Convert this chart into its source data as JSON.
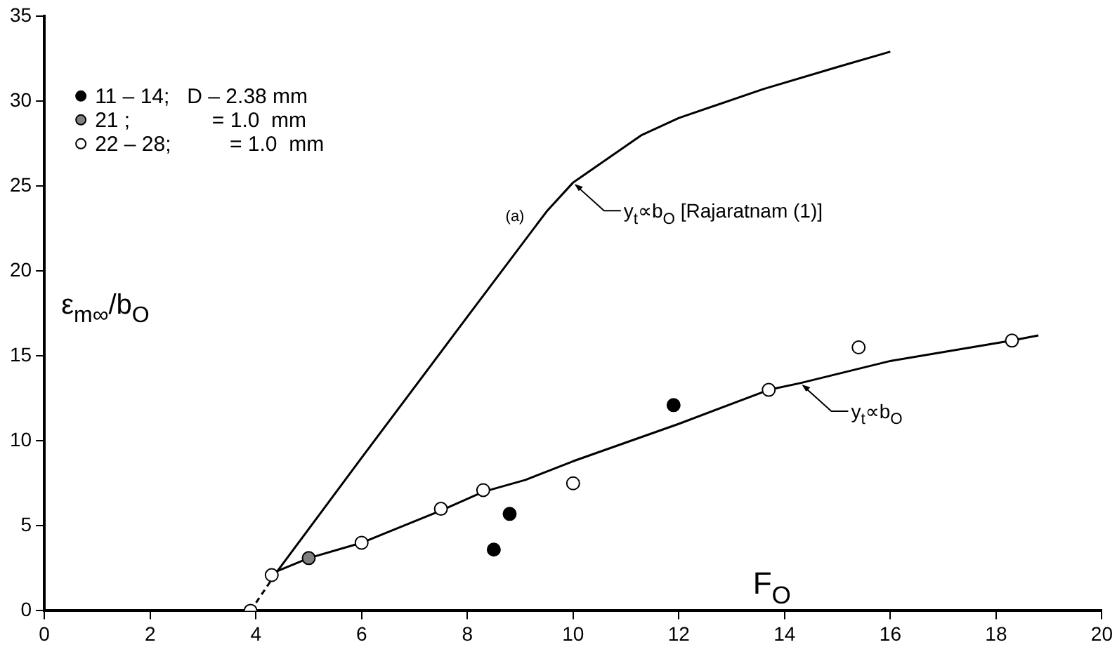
{
  "chart_data": {
    "type": "scatter",
    "xlabel": "F$_{O}$",
    "ylabel": "ε$_{m∞}$/b$_{O}$",
    "xlim": [
      0,
      20
    ],
    "xticks": [
      0,
      2,
      4,
      6,
      8,
      10,
      12,
      14,
      16,
      18,
      20
    ],
    "ylim": [
      0,
      35
    ],
    "yticks": [
      0,
      5,
      10,
      15,
      20,
      25,
      30,
      35
    ],
    "grid": false,
    "legend": "top left",
    "series": [
      {
        "name": "11 – 14;   D – 2.38 mm",
        "marker": "circle",
        "color": "#000000",
        "x": [
          8.5,
          8.8,
          11.9
        ],
        "values": [
          3.6,
          5.7,
          12.1
        ]
      },
      {
        "name": "21 ;              = 1.0  mm",
        "marker": "circle",
        "color": "#808080",
        "x": [
          5.0
        ],
        "values": [
          3.1
        ]
      },
      {
        "name": "22 – 28;          = 1.0  mm",
        "marker": "circle",
        "color": "#ffffff",
        "x": [
          3.9,
          4.3,
          6.0,
          7.5,
          8.3,
          10.0,
          13.7,
          15.4,
          18.3
        ],
        "values": [
          0.0,
          2.1,
          4.0,
          6.0,
          7.1,
          7.5,
          13.0,
          15.5,
          15.9
        ]
      },
      {
        "type": "line",
        "marker": "none",
        "line_style": "dashed",
        "color": "#000000",
        "x": [
          3.9,
          4.4
        ],
        "values": [
          0.0,
          2.3
        ]
      },
      {
        "type": "line",
        "marker": "none",
        "line_style": "solid",
        "color": "#000000",
        "x": [
          4.4,
          6.0,
          8.0,
          9.5,
          10.0,
          11.3,
          12.0,
          13.6,
          15.0,
          16.0
        ],
        "values": [
          2.3,
          9.0,
          17.3,
          23.5,
          25.2,
          28.0,
          29.0,
          30.7,
          32.0,
          32.9
        ]
      },
      {
        "type": "line",
        "marker": "none",
        "line_style": "solid",
        "color": "#000000",
        "x": [
          4.3,
          5.0,
          6.0,
          7.5,
          8.3,
          9.1,
          10.0,
          12.0,
          13.7,
          14.3,
          16.0,
          18.3,
          18.8
        ],
        "values": [
          2.2,
          3.1,
          4.0,
          5.9,
          7.0,
          7.7,
          8.8,
          11.0,
          13.0,
          13.4,
          14.7,
          15.9,
          16.2
        ]
      }
    ],
    "annotations": [
      {
        "text": "y$_{t}$∝b$_{O}$ [Rajaratnam (1)]",
        "x": 10.0,
        "y": 25.2
      },
      {
        "text": "y$_{t}$∝b$_{O}$",
        "x": 14.3,
        "y": 13.4
      },
      "(a)"
    ]
  }
}
